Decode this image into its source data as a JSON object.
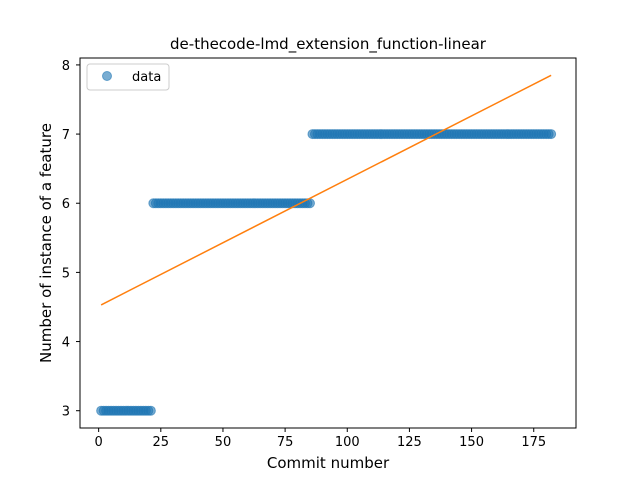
{
  "chart_data": {
    "type": "scatter",
    "title": "de-thecode-lmd_extension_function-linear",
    "xlabel": "Commit number",
    "ylabel": "Number of instance of a feature",
    "xlim": [
      -7.5,
      192
    ],
    "ylim": [
      2.75,
      8.1
    ],
    "xticks": [
      0,
      25,
      50,
      75,
      100,
      125,
      150,
      175
    ],
    "yticks": [
      3,
      4,
      5,
      6,
      7,
      8
    ],
    "grid": false,
    "legend": {
      "position": "top-left",
      "entries": [
        "data"
      ]
    },
    "colors": {
      "data": "#1f77b4",
      "fit": "#ff7f0e"
    },
    "series": [
      {
        "name": "data",
        "kind": "points",
        "segments": [
          {
            "x_start": 1,
            "x_end": 21,
            "y": 3
          },
          {
            "x_start": 22,
            "x_end": 85,
            "y": 6
          },
          {
            "x_start": 86,
            "x_end": 182,
            "y": 7
          }
        ]
      },
      {
        "kind": "line",
        "x": [
          1,
          182
        ],
        "y": [
          4.53,
          7.85
        ]
      }
    ]
  }
}
